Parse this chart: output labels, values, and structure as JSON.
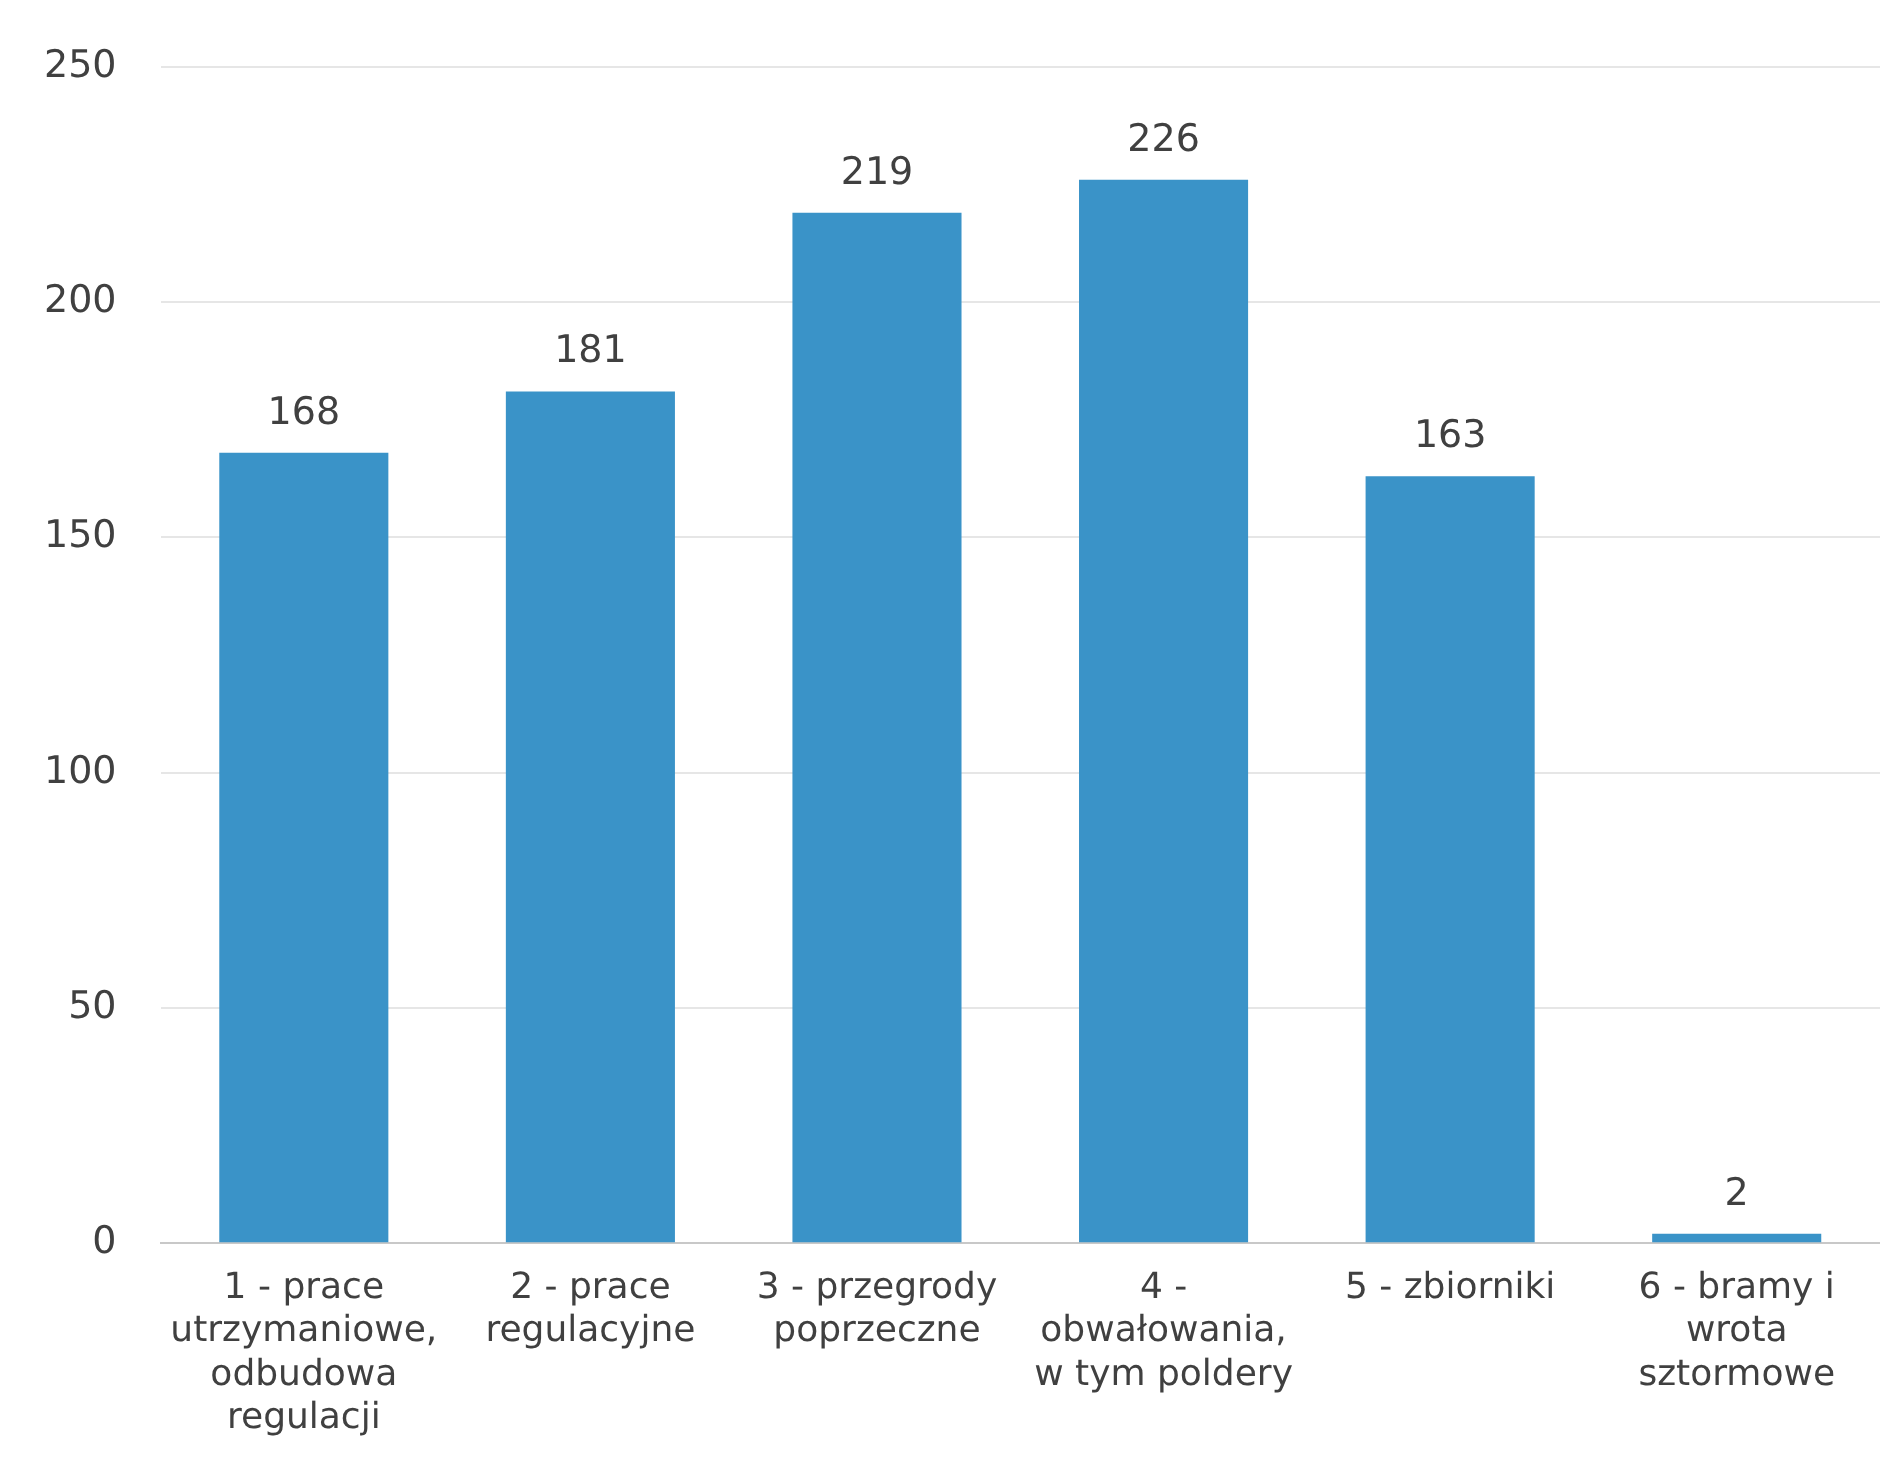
{
  "chart_data": {
    "type": "bar",
    "categories": [
      "1 - prace utrzymaniowe, odbudowa regulacji",
      "2 - prace regulacyjne",
      "3 - przegrody poprzeczne",
      "4 - obwałowania, w tym poldery",
      "5 - zbiorniki",
      "6 - bramy i wrota sztormowe"
    ],
    "values": [
      168,
      181,
      219,
      226,
      163,
      2
    ],
    "color": "#3a93c8",
    "ylim": [
      0,
      250
    ],
    "yticks": [
      0,
      50,
      100,
      150,
      200,
      250
    ],
    "grid": "y",
    "data_labels": true,
    "legend": false
  }
}
